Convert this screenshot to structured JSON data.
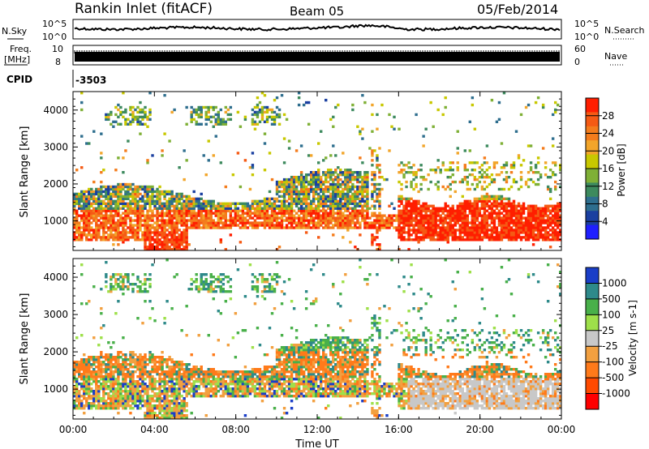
{
  "header": {
    "station": "Rankin Inlet (fitACF)",
    "beam": "Beam 05",
    "date": "05/Feb/2014"
  },
  "strips": {
    "nsky_label": "N.Sky",
    "nsky_ticks": [
      "10^5",
      "10^0"
    ],
    "nsearch_label": "N.Search",
    "nsearch_ticks": [
      "10^5",
      "10^0"
    ],
    "freq_label_1": "Freq.",
    "freq_label_2": "[MHz]",
    "freq_ticks": [
      "10",
      "8"
    ],
    "nave_label": "Nave",
    "nave_ticks": [
      "60",
      "0"
    ],
    "cpid_label": "CPID",
    "cpid_value": "-3503"
  },
  "colors": {
    "power": [
      "#1f1fff",
      "#1a3fa0",
      "#2e6e8e",
      "#3d8a5e",
      "#7fb036",
      "#c8c800",
      "#f2a52a",
      "#f47c1c",
      "#f55a14",
      "#ff1e00"
    ],
    "velocity": [
      "#ff0000",
      "#ff4a00",
      "#ff7a1a",
      "#f2a040",
      "#c8c8c8",
      "#9ee04a",
      "#49b04a",
      "#2e8a8a",
      "#1a3ec8"
    ]
  },
  "chart_data": [
    {
      "type": "heatmap",
      "title": "Power",
      "xlabel": "Time UT",
      "ylabel": "Slant Range [km]",
      "x_ticks": [
        "00:00",
        "04:00",
        "08:00",
        "12:00",
        "16:00",
        "20:00",
        "00:00"
      ],
      "xlim_hours": [
        0,
        24
      ],
      "ylim": [
        200,
        4500
      ],
      "y_ticks": [
        1000,
        2000,
        3000,
        4000
      ],
      "colorbar": {
        "label": "Power [dB]",
        "ticks": [
          4,
          8,
          12,
          16,
          20,
          24,
          28
        ],
        "range": [
          0,
          32
        ]
      }
    },
    {
      "type": "heatmap",
      "title": "Velocity",
      "xlabel": "Time UT",
      "ylabel": "Slant Range [km]",
      "x_ticks": [
        "00:00",
        "04:00",
        "08:00",
        "12:00",
        "16:00",
        "20:00",
        "00:00"
      ],
      "xlim_hours": [
        0,
        24
      ],
      "ylim": [
        200,
        4500
      ],
      "y_ticks": [
        1000,
        2000,
        3000,
        4000
      ],
      "colorbar": {
        "label": "Velocity [m s-1]",
        "ticks": [
          "1000",
          "500",
          "100",
          "25",
          "-25",
          "-100",
          "-500",
          "-1000"
        ]
      }
    }
  ]
}
